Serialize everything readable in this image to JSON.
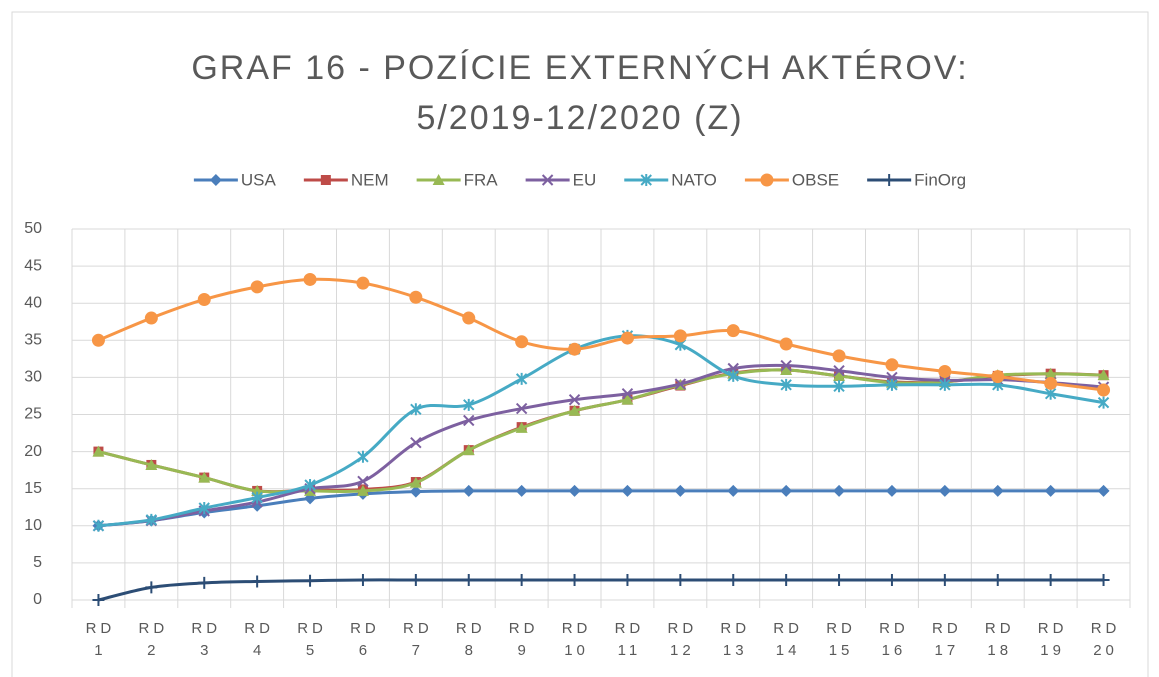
{
  "chart_data": {
    "type": "line",
    "title": [
      "GRAF 16 - POZÍCIE EXTERNÝCH AKTÉROV:",
      "5/2019-12/2020 (Z)"
    ],
    "categories": [
      "RD 1",
      "RD 2",
      "RD 3",
      "RD 4",
      "RD 5",
      "RD 6",
      "RD 7",
      "RD 8",
      "RD 9",
      "RD 10",
      "RD 11",
      "RD 12",
      "RD 13",
      "RD 14",
      "RD 15",
      "RD 16",
      "RD 17",
      "RD 18",
      "RD 19",
      "RD 20"
    ],
    "ylim": [
      0,
      50
    ],
    "yticks": [
      0,
      5,
      10,
      15,
      20,
      25,
      30,
      35,
      40,
      45,
      50
    ],
    "grid": true,
    "legend": "top",
    "series": [
      {
        "name": "USA",
        "color": "#4a7ebb",
        "marker": "diamond",
        "values": [
          10,
          10.7,
          11.8,
          12.7,
          13.7,
          14.3,
          14.6,
          14.7,
          14.7,
          14.7,
          14.7,
          14.7,
          14.7,
          14.7,
          14.7,
          14.7,
          14.7,
          14.7,
          14.7,
          14.7
        ]
      },
      {
        "name": "NEM",
        "color": "#be4b48",
        "marker": "square",
        "values": [
          20,
          18.2,
          16.5,
          14.7,
          14.8,
          14.9,
          15.9,
          20.2,
          23.3,
          25.5,
          27,
          28.9,
          30.6,
          31,
          30.2,
          29.4,
          29.4,
          30.2,
          30.5,
          30.3
        ]
      },
      {
        "name": "FRA",
        "color": "#98b954",
        "marker": "triangle",
        "values": [
          20,
          18.2,
          16.5,
          14.7,
          14.7,
          14.7,
          15.8,
          20.2,
          23.2,
          25.5,
          27,
          29,
          30.5,
          31,
          30.2,
          29.3,
          29.4,
          30.3,
          30.5,
          30.3
        ]
      },
      {
        "name": "EU",
        "color": "#7d60a0",
        "marker": "x",
        "values": [
          10,
          10.7,
          12,
          13.2,
          15,
          16,
          21.2,
          24.2,
          25.8,
          27,
          27.8,
          29.1,
          31.2,
          31.6,
          30.9,
          30,
          29.6,
          29.7,
          29.3,
          28.7
        ]
      },
      {
        "name": "NATO",
        "color": "#46aac5",
        "marker": "star",
        "values": [
          10,
          10.8,
          12.4,
          13.8,
          15.5,
          19.3,
          25.7,
          26.3,
          29.8,
          33.8,
          35.6,
          34.4,
          30.2,
          29,
          28.8,
          29,
          29,
          29,
          27.8,
          26.6
        ]
      },
      {
        "name": "OBSE",
        "color": "#f79646",
        "marker": "circle",
        "values": [
          35,
          38,
          40.5,
          42.2,
          43.2,
          42.7,
          40.8,
          38,
          34.8,
          33.8,
          35.3,
          35.6,
          36.3,
          34.5,
          32.9,
          31.7,
          30.8,
          30.1,
          29.2,
          28.3
        ]
      },
      {
        "name": "FinOrg",
        "color": "#2c4d75",
        "marker": "plus",
        "values": [
          0,
          1.7,
          2.3,
          2.5,
          2.6,
          2.7,
          2.7,
          2.7,
          2.7,
          2.7,
          2.7,
          2.7,
          2.7,
          2.7,
          2.7,
          2.7,
          2.7,
          2.7,
          2.7,
          2.7
        ]
      }
    ]
  }
}
